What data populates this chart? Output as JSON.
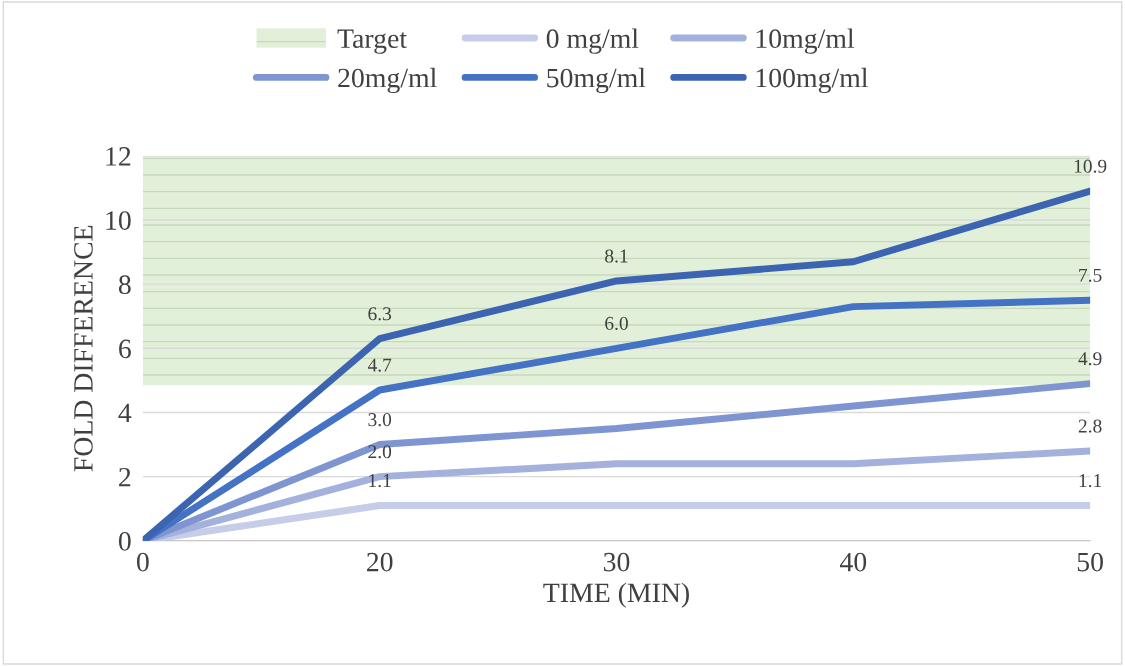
{
  "chart_data": {
    "type": "line",
    "xlabel": "TIME (MIN)",
    "ylabel": "FOLD DIFFERENCE",
    "categories": [
      "0",
      "20",
      "30",
      "40",
      "50"
    ],
    "series": [
      {
        "name": "0 mg/ml",
        "color": "#c5cde8",
        "values": [
          0,
          1.1,
          1.1,
          1.1,
          1.1
        ],
        "value_labels": [
          null,
          "1.1",
          null,
          null,
          "1.1"
        ]
      },
      {
        "name": "10mg/ml",
        "color": "#a3b1dc",
        "values": [
          0,
          2.0,
          2.4,
          2.4,
          2.8
        ],
        "value_labels": [
          null,
          "2.0",
          null,
          null,
          "2.8"
        ]
      },
      {
        "name": "20mg/ml",
        "color": "#7f95d2",
        "values": [
          0,
          3.0,
          3.5,
          4.2,
          4.9
        ],
        "value_labels": [
          null,
          "3.0",
          null,
          null,
          "4.9"
        ]
      },
      {
        "name": "50mg/ml",
        "color": "#4472c4",
        "values": [
          0,
          4.7,
          6.0,
          7.3,
          7.5
        ],
        "value_labels": [
          null,
          "4.7",
          "6.0",
          null,
          "7.5"
        ]
      },
      {
        "name": "100mg/ml",
        "color": "#3c64b0",
        "values": [
          0,
          6.3,
          8.1,
          8.7,
          10.9
        ],
        "value_labels": [
          null,
          "6.3",
          "8.1",
          null,
          "10.9"
        ]
      }
    ],
    "bands": [
      {
        "axis": "y",
        "from": 4.85,
        "to": 12,
        "label": "Target",
        "color": "#e2f0d9"
      }
    ],
    "ylim": [
      0,
      12
    ],
    "yticks": [
      0,
      2,
      4,
      6,
      8,
      10,
      12
    ],
    "grid": "y",
    "legend": "top",
    "line_style": "solid"
  }
}
